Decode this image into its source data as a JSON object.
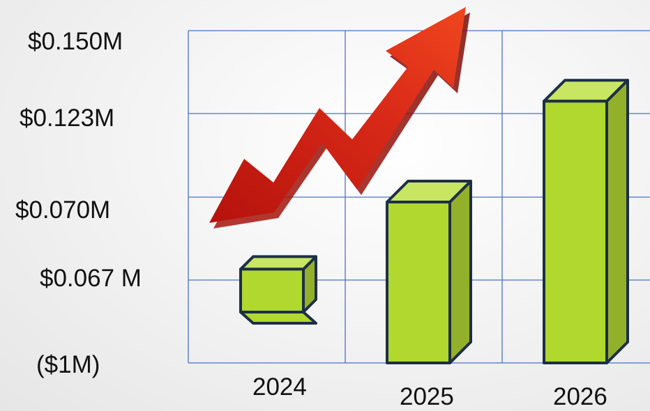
{
  "chart_data": {
    "type": "bar",
    "categories": [
      "2024",
      "2025",
      "2026"
    ],
    "values": [
      0.02,
      0.075,
      0.122
    ],
    "y_tick_labels": [
      "$0.150M",
      "$0.123M",
      "$0.070M",
      "$0.067 M",
      "($1M)"
    ],
    "grid": true,
    "colors": {
      "bar_front": "#b0d82f",
      "bar_top": "#c8e661",
      "bar_side": "#93b02a",
      "outline": "#1d2f46",
      "grid": "#4a72c4",
      "arrow": "#d9281a"
    }
  }
}
